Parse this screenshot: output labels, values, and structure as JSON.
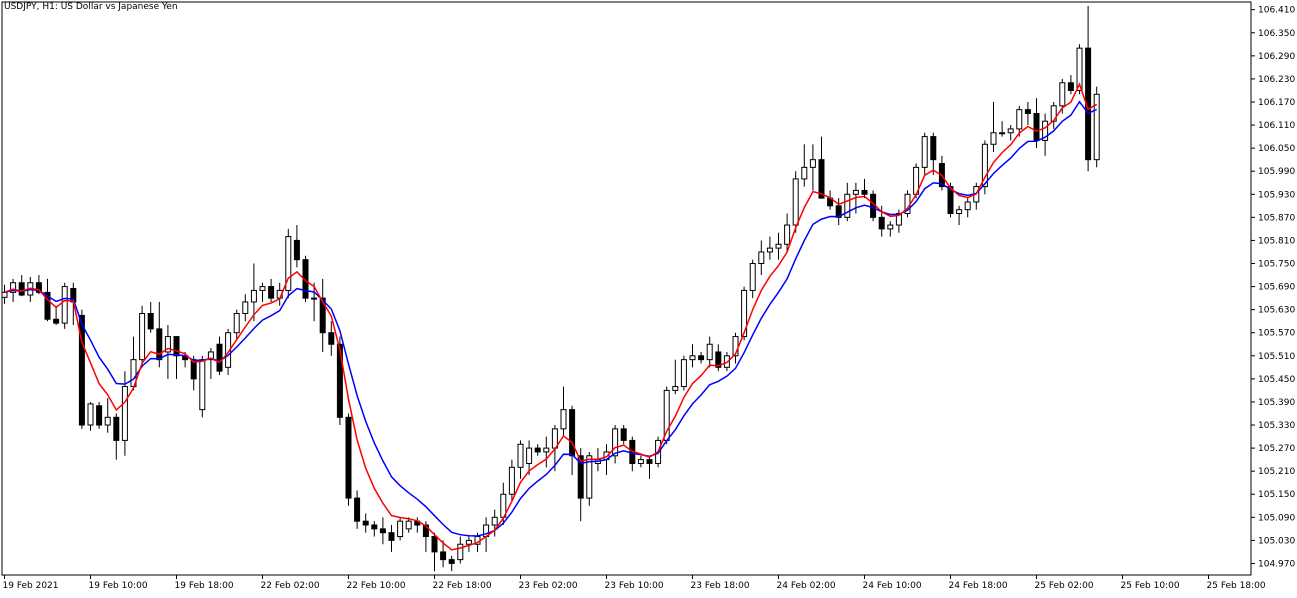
{
  "window": {
    "title": "USDJPY, H1:  US Dollar vs Japanese Yen"
  },
  "colors": {
    "background": "#ffffff",
    "axis": "#000000",
    "bull_fill": "#ffffff",
    "bear_fill": "#000000",
    "candle_outline": "#000000",
    "ma_fast": "#ff0000",
    "ma_slow": "#0000ff"
  },
  "chart_data": {
    "type": "candlestick",
    "symbol": "USDJPY",
    "timeframe": "H1",
    "title": "USDJPY, H1:  US Dollar vs Japanese Yen",
    "ylim": [
      104.94,
      106.43
    ],
    "y_ticks": [
      "106.410",
      "106.350",
      "106.290",
      "106.230",
      "106.170",
      "106.110",
      "106.050",
      "105.990",
      "105.930",
      "105.870",
      "105.810",
      "105.750",
      "105.690",
      "105.630",
      "105.570",
      "105.510",
      "105.450",
      "105.390",
      "105.330",
      "105.270",
      "105.210",
      "105.150",
      "105.090",
      "105.030",
      "104.970"
    ],
    "x_ticks": [
      {
        "index": 0,
        "label": "19 Feb 2021"
      },
      {
        "index": 10,
        "label": "19 Feb 10:00"
      },
      {
        "index": 20,
        "label": "19 Feb 18:00"
      },
      {
        "index": 30,
        "label": "22 Feb 02:00"
      },
      {
        "index": 40,
        "label": "22 Feb 10:00"
      },
      {
        "index": 50,
        "label": "22 Feb 18:00"
      },
      {
        "index": 60,
        "label": "23 Feb 02:00"
      },
      {
        "index": 70,
        "label": "23 Feb 10:00"
      },
      {
        "index": 80,
        "label": "23 Feb 18:00"
      },
      {
        "index": 90,
        "label": "24 Feb 02:00"
      },
      {
        "index": 100,
        "label": "24 Feb 10:00"
      },
      {
        "index": 110,
        "label": "24 Feb 18:00"
      },
      {
        "index": 120,
        "label": "25 Feb 02:00"
      },
      {
        "index": 130,
        "label": "25 Feb 10:00"
      },
      {
        "index": 140,
        "label": "25 Feb 18:00"
      }
    ],
    "candles": [
      [
        105.662,
        105.695,
        105.645,
        105.675
      ],
      [
        105.675,
        105.71,
        105.65,
        105.7
      ],
      [
        105.7,
        105.72,
        105.665,
        105.668
      ],
      [
        105.668,
        105.715,
        105.65,
        105.7
      ],
      [
        105.7,
        105.72,
        105.67,
        105.675
      ],
      [
        105.675,
        105.71,
        105.6,
        105.605
      ],
      [
        105.605,
        105.64,
        105.59,
        105.595
      ],
      [
        105.595,
        105.7,
        105.58,
        105.69
      ],
      [
        105.685,
        105.7,
        105.59,
        105.65
      ],
      [
        105.615,
        105.63,
        105.32,
        105.33
      ],
      [
        105.33,
        105.39,
        105.315,
        105.385
      ],
      [
        105.38,
        105.39,
        105.32,
        105.33
      ],
      [
        105.33,
        105.4,
        105.31,
        105.35
      ],
      [
        105.35,
        105.36,
        105.24,
        105.29
      ],
      [
        105.29,
        105.47,
        105.25,
        105.43
      ],
      [
        105.43,
        105.56,
        105.42,
        105.5
      ],
      [
        105.5,
        105.64,
        105.48,
        105.62
      ],
      [
        105.62,
        105.65,
        105.57,
        105.58
      ],
      [
        105.58,
        105.65,
        105.48,
        105.5
      ],
      [
        105.52,
        105.59,
        105.45,
        105.56
      ],
      [
        105.56,
        105.56,
        105.45,
        105.51
      ],
      [
        105.51,
        105.52,
        105.48,
        105.5
      ],
      [
        105.5,
        105.51,
        105.42,
        105.45
      ],
      [
        105.37,
        105.51,
        105.35,
        105.5
      ],
      [
        105.5,
        105.53,
        105.45,
        105.52
      ],
      [
        105.54,
        105.56,
        105.46,
        105.47
      ],
      [
        105.48,
        105.58,
        105.46,
        105.57
      ],
      [
        105.57,
        105.63,
        105.55,
        105.62
      ],
      [
        105.62,
        105.67,
        105.6,
        105.65
      ],
      [
        105.65,
        105.75,
        105.6,
        105.68
      ],
      [
        105.68,
        105.7,
        105.65,
        105.69
      ],
      [
        105.69,
        105.71,
        105.65,
        105.66
      ],
      [
        105.66,
        105.7,
        105.64,
        105.68
      ],
      [
        105.68,
        105.84,
        105.66,
        105.82
      ],
      [
        105.81,
        105.85,
        105.74,
        105.76
      ],
      [
        105.76,
        105.77,
        105.65,
        105.66
      ],
      [
        105.66,
        105.7,
        105.6,
        105.66
      ],
      [
        105.66,
        105.71,
        105.52,
        105.57
      ],
      [
        105.57,
        105.6,
        105.51,
        105.54
      ],
      [
        105.54,
        105.56,
        105.33,
        105.35
      ],
      [
        105.35,
        105.36,
        105.12,
        105.14
      ],
      [
        105.14,
        105.16,
        105.06,
        105.08
      ],
      [
        105.08,
        105.1,
        105.05,
        105.07
      ],
      [
        105.07,
        105.08,
        105.04,
        105.06
      ],
      [
        105.06,
        105.09,
        105.02,
        105.05
      ],
      [
        105.05,
        105.07,
        105.0,
        105.03
      ],
      [
        105.04,
        105.09,
        105.03,
        105.08
      ],
      [
        105.06,
        105.09,
        105.05,
        105.08
      ],
      [
        105.08,
        105.09,
        105.05,
        105.07
      ],
      [
        105.07,
        105.08,
        105.0,
        105.04
      ],
      [
        105.04,
        105.05,
        104.95,
        105.0
      ],
      [
        105.0,
        105.03,
        104.96,
        104.98
      ],
      [
        104.98,
        104.99,
        104.95,
        104.97
      ],
      [
        104.98,
        105.04,
        104.97,
        105.02
      ],
      [
        105.02,
        105.04,
        105.0,
        105.03
      ],
      [
        105.02,
        105.05,
        105.0,
        105.04
      ],
      [
        105.04,
        105.09,
        105.0,
        105.07
      ],
      [
        105.07,
        105.11,
        105.04,
        105.09
      ],
      [
        105.09,
        105.18,
        105.07,
        105.15
      ],
      [
        105.15,
        105.24,
        105.13,
        105.22
      ],
      [
        105.22,
        105.29,
        105.19,
        105.28
      ],
      [
        105.23,
        105.29,
        105.2,
        105.27
      ],
      [
        105.27,
        105.28,
        105.25,
        105.26
      ],
      [
        105.26,
        105.3,
        105.22,
        105.27
      ],
      [
        105.27,
        105.33,
        105.21,
        105.32
      ],
      [
        105.32,
        105.43,
        105.3,
        105.37
      ],
      [
        105.37,
        105.38,
        105.2,
        105.25
      ],
      [
        105.25,
        105.27,
        105.08,
        105.14
      ],
      [
        105.14,
        105.26,
        105.12,
        105.25
      ],
      [
        105.23,
        105.27,
        105.21,
        105.24
      ],
      [
        105.24,
        105.28,
        105.2,
        105.26
      ],
      [
        105.25,
        105.33,
        105.23,
        105.32
      ],
      [
        105.32,
        105.33,
        105.28,
        105.29
      ],
      [
        105.29,
        105.3,
        105.21,
        105.23
      ],
      [
        105.23,
        105.25,
        105.22,
        105.24
      ],
      [
        105.24,
        105.25,
        105.19,
        105.23
      ],
      [
        105.23,
        105.3,
        105.22,
        105.29
      ],
      [
        105.29,
        105.43,
        105.28,
        105.42
      ],
      [
        105.42,
        105.5,
        105.41,
        105.43
      ],
      [
        105.43,
        105.51,
        105.42,
        105.5
      ],
      [
        105.5,
        105.54,
        105.48,
        105.51
      ],
      [
        105.51,
        105.52,
        105.49,
        105.5
      ],
      [
        105.5,
        105.56,
        105.48,
        105.54
      ],
      [
        105.52,
        105.54,
        105.47,
        105.48
      ],
      [
        105.48,
        105.52,
        105.47,
        105.51
      ],
      [
        105.51,
        105.57,
        105.49,
        105.56
      ],
      [
        105.56,
        105.69,
        105.55,
        105.68
      ],
      [
        105.68,
        105.76,
        105.66,
        105.75
      ],
      [
        105.75,
        105.81,
        105.72,
        105.78
      ],
      [
        105.78,
        105.82,
        105.76,
        105.79
      ],
      [
        105.79,
        105.83,
        105.76,
        105.8
      ],
      [
        105.8,
        105.88,
        105.78,
        105.85
      ],
      [
        105.85,
        105.99,
        105.83,
        105.97
      ],
      [
        105.97,
        106.06,
        105.95,
        106.0
      ],
      [
        106.0,
        106.06,
        105.94,
        106.02
      ],
      [
        106.02,
        106.08,
        105.92,
        105.92
      ],
      [
        105.92,
        105.94,
        105.89,
        105.9
      ],
      [
        105.9,
        105.92,
        105.85,
        105.87
      ],
      [
        105.87,
        105.96,
        105.86,
        105.93
      ],
      [
        105.93,
        105.96,
        105.88,
        105.94
      ],
      [
        105.94,
        105.97,
        105.92,
        105.93
      ],
      [
        105.93,
        105.94,
        105.86,
        105.87
      ],
      [
        105.87,
        105.9,
        105.82,
        105.84
      ],
      [
        105.84,
        105.86,
        105.82,
        105.85
      ],
      [
        105.85,
        105.89,
        105.83,
        105.88
      ],
      [
        105.88,
        105.94,
        105.87,
        105.93
      ],
      [
        105.93,
        106.01,
        105.92,
        106.0
      ],
      [
        106.0,
        106.09,
        105.98,
        106.08
      ],
      [
        106.08,
        106.09,
        105.98,
        106.02
      ],
      [
        106.01,
        106.03,
        105.94,
        105.95
      ],
      [
        105.95,
        105.96,
        105.87,
        105.88
      ],
      [
        105.88,
        105.9,
        105.85,
        105.89
      ],
      [
        105.89,
        105.92,
        105.87,
        105.91
      ],
      [
        105.91,
        105.96,
        105.89,
        105.95
      ],
      [
        105.95,
        106.07,
        105.93,
        106.06
      ],
      [
        106.06,
        106.17,
        106.04,
        106.09
      ],
      [
        106.09,
        106.12,
        106.08,
        106.09
      ],
      [
        106.09,
        106.11,
        106.07,
        106.1
      ],
      [
        106.1,
        106.16,
        106.08,
        106.15
      ],
      [
        106.15,
        106.17,
        106.11,
        106.14
      ],
      [
        106.14,
        106.18,
        106.05,
        106.07
      ],
      [
        106.07,
        106.14,
        106.03,
        106.12
      ],
      [
        106.12,
        106.17,
        106.1,
        106.16
      ],
      [
        106.16,
        106.23,
        106.14,
        106.22
      ],
      [
        106.22,
        106.24,
        106.19,
        106.2
      ],
      [
        106.2,
        106.32,
        106.19,
        106.31
      ],
      [
        106.31,
        106.42,
        105.99,
        106.02
      ],
      [
        106.02,
        106.21,
        106.0,
        106.19
      ]
    ],
    "ma_fast": [],
    "ma_slow": []
  }
}
